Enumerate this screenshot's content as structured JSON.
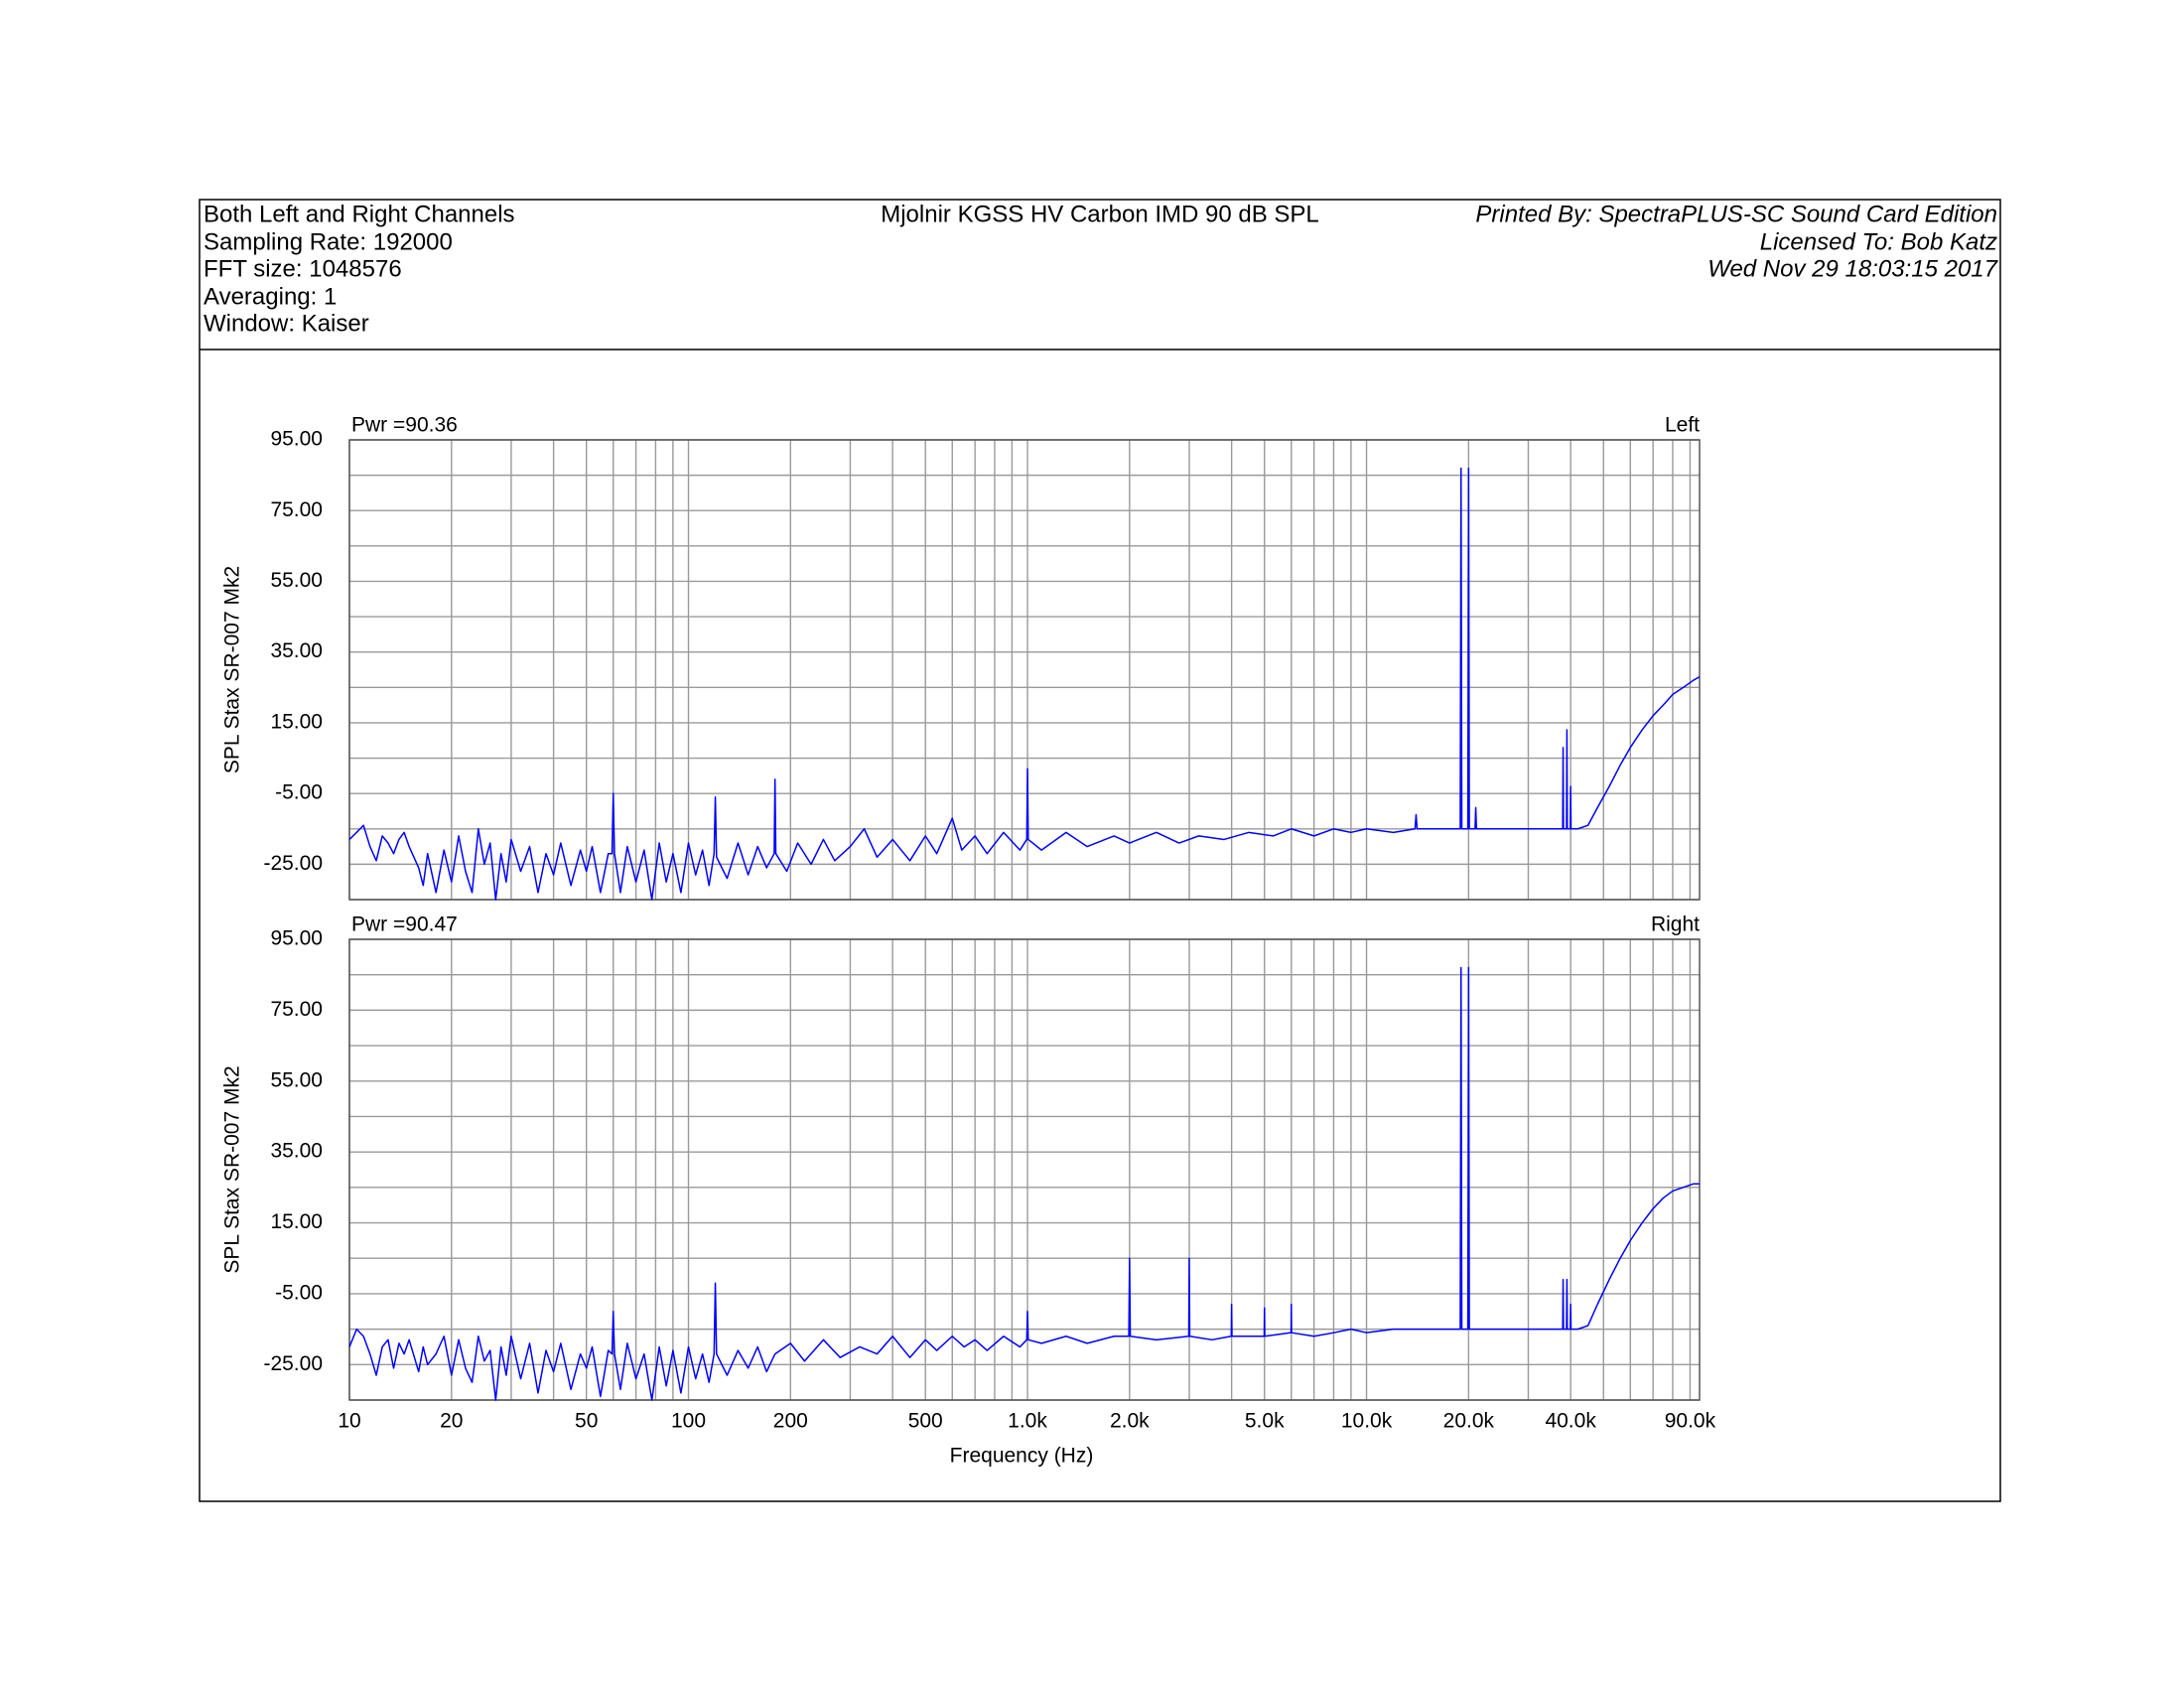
{
  "header": {
    "left": [
      "Both Left and Right Channels",
      "Sampling Rate: 192000",
      "FFT size: 1048576",
      "Averaging: 1",
      "Window: Kaiser"
    ],
    "title": "Mjolnir KGSS HV Carbon IMD 90 dB SPL",
    "right": [
      "Printed By: SpectraPLUS-SC Sound Card Edition",
      "Licensed To: Bob Katz",
      "Wed Nov 29 18:03:15 2017"
    ]
  },
  "chart_data": [
    {
      "type": "line",
      "title": "Pwr =90.36",
      "channel": "Left",
      "ylabel": "SPL Stax SR-007 Mk2",
      "color": "#0000ff",
      "log_x": true,
      "grid": true,
      "xlim": [
        10,
        96000
      ],
      "ylim": [
        -35,
        95
      ],
      "x_grid": [
        10,
        20,
        30,
        40,
        50,
        60,
        70,
        80,
        90,
        100,
        200,
        300,
        400,
        500,
        600,
        700,
        800,
        900,
        1000,
        2000,
        3000,
        4000,
        5000,
        6000,
        7000,
        8000,
        9000,
        10000,
        20000,
        30000,
        40000,
        50000,
        60000,
        70000,
        80000,
        90000
      ],
      "yticks": [
        {
          "value": 95,
          "label": "95.00"
        },
        {
          "value": 75,
          "label": "75.00"
        },
        {
          "value": 55,
          "label": "55.00"
        },
        {
          "value": 35,
          "label": "35.00"
        },
        {
          "value": 15,
          "label": "15.00"
        },
        {
          "value": -5,
          "label": "-5.00"
        },
        {
          "value": -25,
          "label": "-25.00"
        }
      ],
      "y_grid": [
        95,
        85,
        75,
        65,
        55,
        45,
        35,
        25,
        15,
        5,
        -5,
        -15,
        -25,
        -35
      ],
      "x": [
        10,
        10.5,
        11,
        11.5,
        12,
        12.5,
        13,
        13.5,
        14,
        14.5,
        15,
        16,
        16.5,
        17,
        18,
        19,
        20,
        21,
        22,
        23,
        24,
        25,
        26,
        27,
        28,
        29,
        30,
        32,
        34,
        36,
        38,
        40,
        42,
        45,
        48,
        50,
        52,
        55,
        58,
        59.5,
        60,
        60.5,
        63,
        66,
        70,
        74,
        78,
        82,
        86,
        90,
        95,
        100,
        105,
        110,
        115,
        119,
        120,
        121,
        130,
        140,
        150,
        160,
        170,
        179,
        180,
        181,
        195,
        210,
        230,
        250,
        270,
        300,
        330,
        360,
        400,
        450,
        500,
        540,
        600,
        640,
        700,
        760,
        850,
        950,
        995,
        1000,
        1005,
        1100,
        1300,
        1500,
        1800,
        2000,
        2400,
        2800,
        3200,
        3800,
        4500,
        5300,
        6000,
        7000,
        8000,
        9000,
        10000,
        12000,
        13900,
        14000,
        14100,
        17000,
        18900,
        19000,
        19100,
        19900,
        20000,
        20100,
        20900,
        21000,
        21100,
        25000,
        30000,
        35000,
        37900,
        38000,
        38100,
        38900,
        39000,
        39100,
        39900,
        40000,
        40100,
        42000,
        45000,
        48000,
        52000,
        56000,
        60000,
        65000,
        70000,
        75000,
        80000,
        86000,
        92000,
        96000
      ],
      "values": [
        -18,
        -16,
        -14,
        -20,
        -24,
        -17,
        -19,
        -22,
        -18,
        -16,
        -20,
        -26,
        -31,
        -22,
        -33,
        -21,
        -30,
        -17,
        -27,
        -33,
        -15,
        -25,
        -19,
        -35,
        -22,
        -30,
        -18,
        -27,
        -20,
        -33,
        -22,
        -28,
        -19,
        -31,
        -21,
        -27,
        -20,
        -33,
        -22,
        -22,
        -5,
        -22,
        -33,
        -20,
        -30,
        -21,
        -35,
        -19,
        -30,
        -22,
        -33,
        -19,
        -28,
        -21,
        -31,
        -22,
        -6,
        -23,
        -29,
        -19,
        -28,
        -20,
        -26,
        -22,
        -1,
        -22,
        -27,
        -19,
        -25,
        -18,
        -24,
        -20,
        -15,
        -23,
        -18,
        -24,
        -17,
        -22,
        -12,
        -21,
        -17,
        -22,
        -16,
        -21,
        -18,
        2,
        -18,
        -21,
        -16,
        -20,
        -17,
        -19,
        -16,
        -19,
        -17,
        -18,
        -16,
        -17,
        -15,
        -17,
        -15,
        -16,
        -15,
        -16,
        -15,
        -11,
        -15,
        -15,
        -15,
        87,
        -15,
        -15,
        87,
        -15,
        -15,
        -9,
        -15,
        -15,
        -15,
        -15,
        -15,
        8,
        -15,
        -15,
        13,
        -15,
        -15,
        -3,
        -15,
        -15,
        -14,
        -9,
        -3,
        3,
        8,
        13,
        17,
        20,
        23,
        25,
        27,
        28
      ]
    },
    {
      "type": "line",
      "title": "Pwr =90.47",
      "channel": "Right",
      "ylabel": "SPL Stax SR-007 Mk2",
      "xlabel": "Frequency (Hz)",
      "color": "#0000ff",
      "log_x": true,
      "grid": true,
      "xlim": [
        10,
        96000
      ],
      "ylim": [
        -35,
        95
      ],
      "xticks": [
        10,
        20,
        50,
        100,
        200,
        500,
        {
          "value": 1000,
          "label": "1.0k"
        },
        {
          "value": 2000,
          "label": "2.0k"
        },
        {
          "value": 5000,
          "label": "5.0k"
        },
        {
          "value": 10000,
          "label": "10.0k"
        },
        {
          "value": 20000,
          "label": "20.0k"
        },
        {
          "value": 40000,
          "label": "40.0k"
        },
        {
          "value": 90000,
          "label": "90.0k"
        }
      ],
      "x_grid": [
        10,
        20,
        30,
        40,
        50,
        60,
        70,
        80,
        90,
        100,
        200,
        300,
        400,
        500,
        600,
        700,
        800,
        900,
        1000,
        2000,
        3000,
        4000,
        5000,
        6000,
        7000,
        8000,
        9000,
        10000,
        20000,
        30000,
        40000,
        50000,
        60000,
        70000,
        80000,
        90000
      ],
      "yticks": [
        {
          "value": 95,
          "label": "95.00"
        },
        {
          "value": 75,
          "label": "75.00"
        },
        {
          "value": 55,
          "label": "55.00"
        },
        {
          "value": 35,
          "label": "35.00"
        },
        {
          "value": 15,
          "label": "15.00"
        },
        {
          "value": -5,
          "label": "-5.00"
        },
        {
          "value": -25,
          "label": "-25.00"
        }
      ],
      "y_grid": [
        95,
        85,
        75,
        65,
        55,
        45,
        35,
        25,
        15,
        5,
        -5,
        -15,
        -25,
        -35
      ],
      "x": [
        10,
        10.5,
        11,
        11.5,
        12,
        12.5,
        13,
        13.5,
        14,
        14.5,
        15,
        16,
        16.5,
        17,
        18,
        19,
        20,
        21,
        22,
        23,
        24,
        25,
        26,
        27,
        28,
        29,
        30,
        32,
        34,
        36,
        38,
        40,
        42,
        45,
        48,
        50,
        52,
        55,
        58,
        59.5,
        60,
        60.5,
        63,
        66,
        70,
        74,
        78,
        82,
        86,
        90,
        95,
        100,
        105,
        110,
        115,
        119,
        120,
        121,
        130,
        140,
        150,
        160,
        170,
        180,
        200,
        220,
        250,
        280,
        320,
        360,
        400,
        450,
        500,
        540,
        600,
        650,
        700,
        760,
        850,
        950,
        995,
        1000,
        1005,
        1100,
        1300,
        1500,
        1800,
        1990,
        2000,
        2010,
        2400,
        2990,
        3000,
        3010,
        3500,
        3990,
        4000,
        4010,
        4990,
        5000,
        5010,
        5990,
        6000,
        6010,
        7000,
        8000,
        9000,
        10000,
        12000,
        14000,
        17000,
        18900,
        19000,
        19100,
        19900,
        20000,
        20100,
        25000,
        30000,
        35000,
        37900,
        38000,
        38100,
        38900,
        39000,
        39100,
        39900,
        40000,
        40100,
        42000,
        45000,
        48000,
        52000,
        56000,
        60000,
        65000,
        70000,
        75000,
        80000,
        86000,
        92000,
        96000
      ],
      "values": [
        -20,
        -15,
        -17,
        -22,
        -28,
        -20,
        -18,
        -26,
        -19,
        -22,
        -18,
        -27,
        -20,
        -25,
        -22,
        -17,
        -28,
        -18,
        -26,
        -30,
        -17,
        -24,
        -21,
        -35,
        -20,
        -28,
        -17,
        -29,
        -19,
        -33,
        -21,
        -27,
        -19,
        -32,
        -22,
        -26,
        -20,
        -34,
        -21,
        -22,
        -10,
        -22,
        -32,
        -19,
        -29,
        -22,
        -35,
        -20,
        -31,
        -21,
        -33,
        -20,
        -29,
        -22,
        -30,
        -22,
        -2,
        -22,
        -28,
        -21,
        -26,
        -20,
        -27,
        -22,
        -19,
        -24,
        -18,
        -23,
        -20,
        -22,
        -17,
        -23,
        -18,
        -21,
        -17,
        -20,
        -18,
        -21,
        -17,
        -20,
        -18,
        -10,
        -18,
        -19,
        -17,
        -19,
        -17,
        -17,
        5,
        -17,
        -18,
        -17,
        5,
        -17,
        -18,
        -17,
        -8,
        -17,
        -17,
        -9,
        -17,
        -16,
        -8,
        -16,
        -17,
        -16,
        -15,
        -16,
        -15,
        -15,
        -15,
        -15,
        87,
        -15,
        -15,
        87,
        -15,
        -15,
        -15,
        -15,
        -15,
        -1,
        -15,
        -15,
        -1,
        -15,
        -15,
        -8,
        -15,
        -15,
        -14,
        -8,
        -1,
        5,
        10,
        15,
        19,
        22,
        24,
        25,
        26,
        26
      ]
    }
  ]
}
